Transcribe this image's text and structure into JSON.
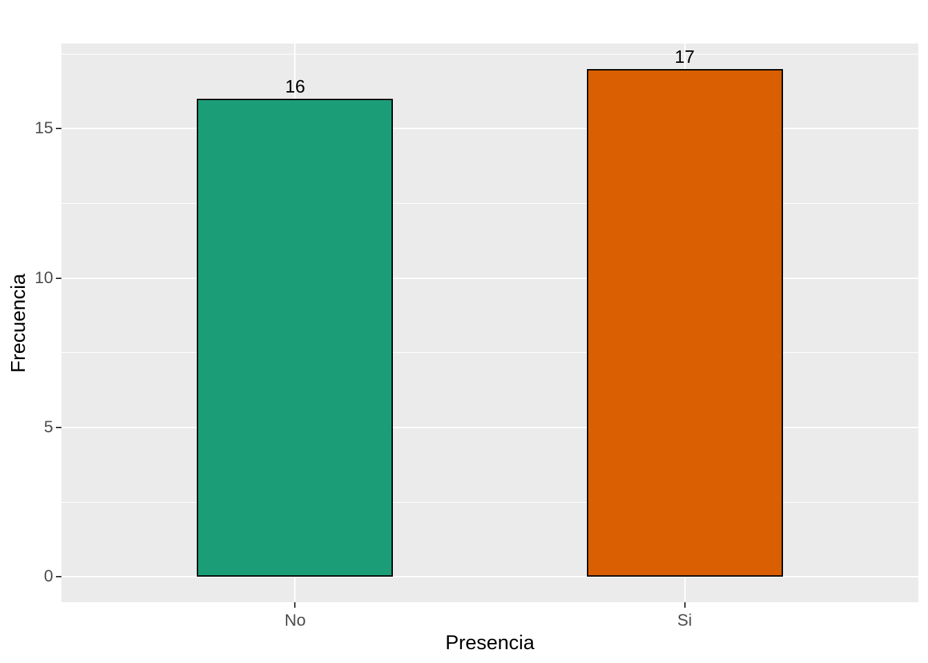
{
  "chart_data": {
    "type": "bar",
    "title": "",
    "categories": [
      "No",
      "Si"
    ],
    "values": [
      16,
      17
    ],
    "bar_labels": [
      "16",
      "17"
    ],
    "bar_colors": [
      "#1B9E77",
      "#D95F02"
    ],
    "bar_outline_color": "#000000",
    "xlabel": "Presencia",
    "ylabel": "Frecuencia",
    "y_ticks": [
      0,
      5,
      10,
      15
    ],
    "y_minor_ticks": [
      2.5,
      7.5,
      12.5,
      17.5
    ],
    "ylim": [
      -0.85,
      17.85
    ],
    "legend_position": "none",
    "grid": "on",
    "panel_background": "#EBEBEB",
    "gridline_color": "#FFFFFF",
    "axis_text_color": "#4D4D4D",
    "axis_title_color": "#000000",
    "tick_mark_color": "#333333"
  }
}
